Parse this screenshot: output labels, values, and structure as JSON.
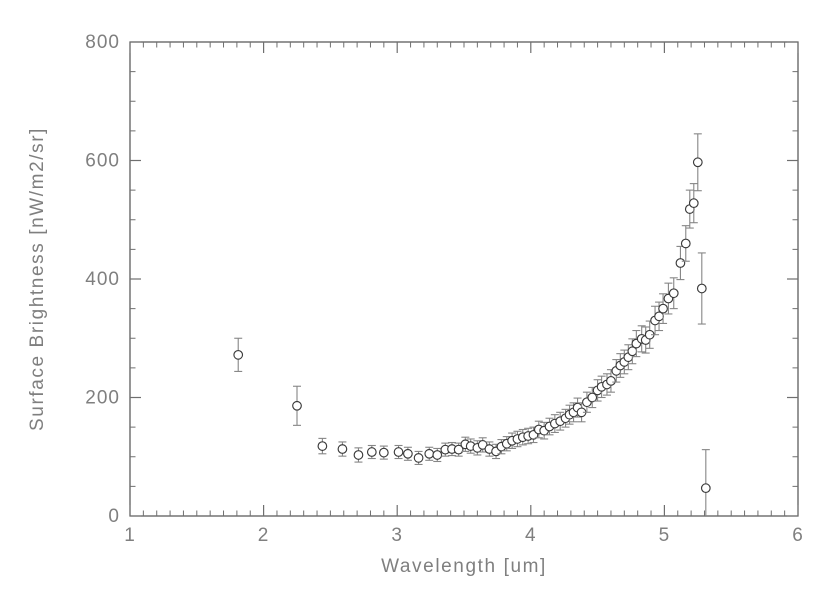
{
  "chart_data": {
    "type": "scatter",
    "title": "",
    "xlabel": "Wavelength [um]",
    "ylabel": "Surface Brightness [nW/m2/sr]",
    "xlim": [
      1,
      6
    ],
    "ylim": [
      0,
      800
    ],
    "x_ticks": [
      1,
      2,
      3,
      4,
      5,
      6
    ],
    "y_ticks": [
      0,
      200,
      400,
      600,
      800
    ],
    "x_minor_step": 0.1,
    "y_minor_step": 50,
    "grid": false,
    "legend": null,
    "marker": "open-circle",
    "error_bars": "vertical-with-caps",
    "colors": {
      "axis": "#4f4f4f",
      "tick": "#6f6f6f",
      "text": "#7f7f7f",
      "marker": "#3a3a3a",
      "error_bar": "#868686"
    },
    "series": [
      {
        "name": "surface brightness spectrum",
        "point_format": [
          "wavelength_um",
          "surface_brightness_nW_m2_sr",
          "error"
        ],
        "points": [
          [
            1.81,
            272,
            28
          ],
          [
            2.25,
            186,
            33
          ],
          [
            2.44,
            118,
            13
          ],
          [
            2.59,
            113,
            12
          ],
          [
            2.71,
            103,
            12
          ],
          [
            2.81,
            108,
            11
          ],
          [
            2.9,
            107,
            11
          ],
          [
            3.01,
            108,
            11
          ],
          [
            3.08,
            105,
            11
          ],
          [
            3.16,
            98,
            11
          ],
          [
            3.24,
            105,
            11
          ],
          [
            3.3,
            103,
            11
          ],
          [
            3.36,
            112,
            11
          ],
          [
            3.41,
            113,
            11
          ],
          [
            3.46,
            112,
            11
          ],
          [
            3.51,
            121,
            12
          ],
          [
            3.55,
            118,
            12
          ],
          [
            3.6,
            115,
            12
          ],
          [
            3.64,
            120,
            12
          ],
          [
            3.69,
            113,
            12
          ],
          [
            3.74,
            109,
            12
          ],
          [
            3.78,
            117,
            12
          ],
          [
            3.82,
            122,
            12
          ],
          [
            3.86,
            127,
            13
          ],
          [
            3.9,
            130,
            13
          ],
          [
            3.94,
            133,
            13
          ],
          [
            3.98,
            135,
            13
          ],
          [
            4.02,
            137,
            13
          ],
          [
            4.06,
            146,
            14
          ],
          [
            4.1,
            144,
            14
          ],
          [
            4.14,
            151,
            14
          ],
          [
            4.18,
            156,
            15
          ],
          [
            4.22,
            160,
            15
          ],
          [
            4.26,
            165,
            15
          ],
          [
            4.29,
            171,
            16
          ],
          [
            4.32,
            175,
            16
          ],
          [
            4.35,
            183,
            16
          ],
          [
            4.38,
            175,
            16
          ],
          [
            4.42,
            192,
            17
          ],
          [
            4.46,
            200,
            17
          ],
          [
            4.5,
            212,
            18
          ],
          [
            4.53,
            218,
            18
          ],
          [
            4.57,
            222,
            18
          ],
          [
            4.6,
            228,
            19
          ],
          [
            4.64,
            245,
            19
          ],
          [
            4.67,
            254,
            20
          ],
          [
            4.7,
            260,
            20
          ],
          [
            4.73,
            268,
            21
          ],
          [
            4.76,
            278,
            21
          ],
          [
            4.79,
            291,
            22
          ],
          [
            4.83,
            299,
            22
          ],
          [
            4.86,
            297,
            22
          ],
          [
            4.89,
            306,
            23
          ],
          [
            4.93,
            330,
            24
          ],
          [
            4.96,
            337,
            24
          ],
          [
            4.99,
            350,
            25
          ],
          [
            5.03,
            367,
            26
          ],
          [
            5.07,
            376,
            26
          ],
          [
            5.12,
            427,
            28
          ],
          [
            5.16,
            460,
            30
          ],
          [
            5.19,
            518,
            32
          ],
          [
            5.22,
            528,
            33
          ],
          [
            5.25,
            597,
            48
          ],
          [
            5.28,
            384,
            60
          ],
          [
            5.31,
            47,
            65
          ]
        ]
      }
    ]
  }
}
